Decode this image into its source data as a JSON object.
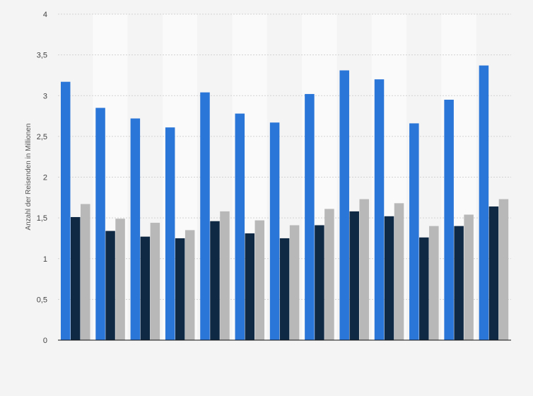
{
  "chart_data": {
    "type": "bar",
    "title": "",
    "xlabel": "",
    "ylabel": "Anzahl der Reisenden in Millionen",
    "ylim": [
      0,
      4
    ],
    "y_ticks": [
      0,
      0.5,
      1,
      1.5,
      2,
      2.5,
      3,
      3.5,
      4
    ],
    "y_tick_labels": [
      "0",
      "0,5",
      "1",
      "1,5",
      "2",
      "2,5",
      "3",
      "3,5",
      "4"
    ],
    "grid": true,
    "legend": "none",
    "categories": [
      "",
      "",
      "",
      "",
      "",
      "",
      "",
      "",
      "",
      "",
      "",
      "",
      ""
    ],
    "series": [
      {
        "color": "#2a75d8",
        "values": [
          3.17,
          2.85,
          2.72,
          2.61,
          3.04,
          2.78,
          2.67,
          3.02,
          3.31,
          3.2,
          2.66,
          2.95,
          3.37
        ]
      },
      {
        "color": "#0f2843",
        "values": [
          1.51,
          1.34,
          1.27,
          1.25,
          1.46,
          1.31,
          1.25,
          1.41,
          1.58,
          1.52,
          1.26,
          1.4,
          1.64
        ]
      },
      {
        "color": "#b8b8b8",
        "values": [
          1.67,
          1.49,
          1.44,
          1.35,
          1.58,
          1.47,
          1.41,
          1.61,
          1.73,
          1.68,
          1.4,
          1.54,
          1.73
        ]
      }
    ]
  }
}
